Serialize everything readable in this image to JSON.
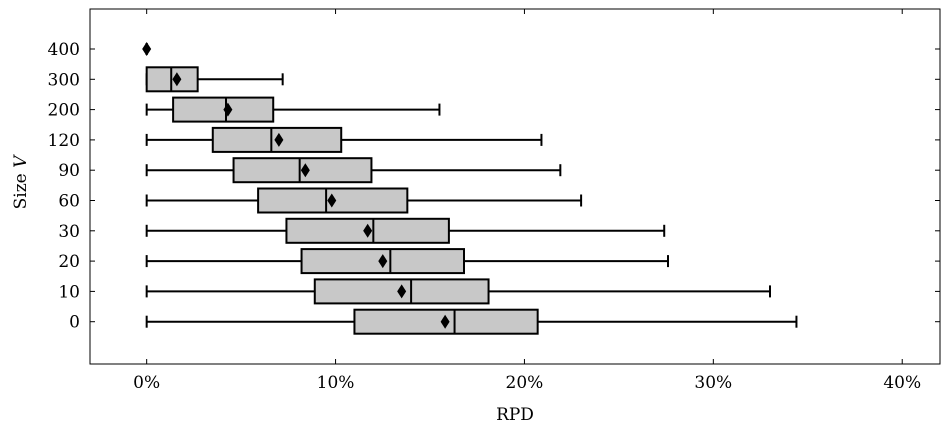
{
  "chart_data": {
    "type": "boxplot",
    "orientation": "horizontal",
    "xlabel": "RPD",
    "ylabel": "Size V",
    "xlim": [
      -3,
      42
    ],
    "x_ticks": [
      {
        "value": 0,
        "label": "0%"
      },
      {
        "value": 10,
        "label": "10%"
      },
      {
        "value": 20,
        "label": "20%"
      },
      {
        "value": 30,
        "label": "30%"
      },
      {
        "value": 40,
        "label": "40%"
      }
    ],
    "categories": [
      "400",
      "300",
      "200",
      "120",
      "90",
      "60",
      "30",
      "20",
      "10",
      "0"
    ],
    "boxes": [
      {
        "category": "400",
        "min": 0,
        "q1": 0,
        "median": 0,
        "q3": 0,
        "max": 0,
        "mean": 0
      },
      {
        "category": "300",
        "min": 0,
        "q1": 0,
        "median": 1.3,
        "q3": 2.7,
        "max": 7.2,
        "mean": 1.6
      },
      {
        "category": "200",
        "min": 0,
        "q1": 1.4,
        "median": 4.2,
        "q3": 6.7,
        "max": 15.5,
        "mean": 4.3
      },
      {
        "category": "120",
        "min": 0,
        "q1": 3.5,
        "median": 6.6,
        "q3": 10.3,
        "max": 20.9,
        "mean": 7.0
      },
      {
        "category": "90",
        "min": 0,
        "q1": 4.6,
        "median": 8.1,
        "q3": 11.9,
        "max": 21.9,
        "mean": 8.4
      },
      {
        "category": "60",
        "min": 0,
        "q1": 5.9,
        "median": 9.5,
        "q3": 13.8,
        "max": 23.0,
        "mean": 9.8
      },
      {
        "category": "30",
        "min": 0,
        "q1": 7.4,
        "median": 12.0,
        "q3": 16.0,
        "max": 27.4,
        "mean": 11.7
      },
      {
        "category": "20",
        "min": 0,
        "q1": 8.2,
        "median": 12.9,
        "q3": 16.8,
        "max": 27.6,
        "mean": 12.5
      },
      {
        "category": "10",
        "min": 0,
        "q1": 8.9,
        "median": 14.0,
        "q3": 18.1,
        "max": 33.0,
        "mean": 13.5
      },
      {
        "category": "0",
        "min": 0,
        "q1": 11.0,
        "median": 16.3,
        "q3": 20.7,
        "max": 34.4,
        "mean": 15.8
      }
    ],
    "box_fill": "#c8c8c8",
    "stroke_color": "#000000",
    "grid": false
  }
}
